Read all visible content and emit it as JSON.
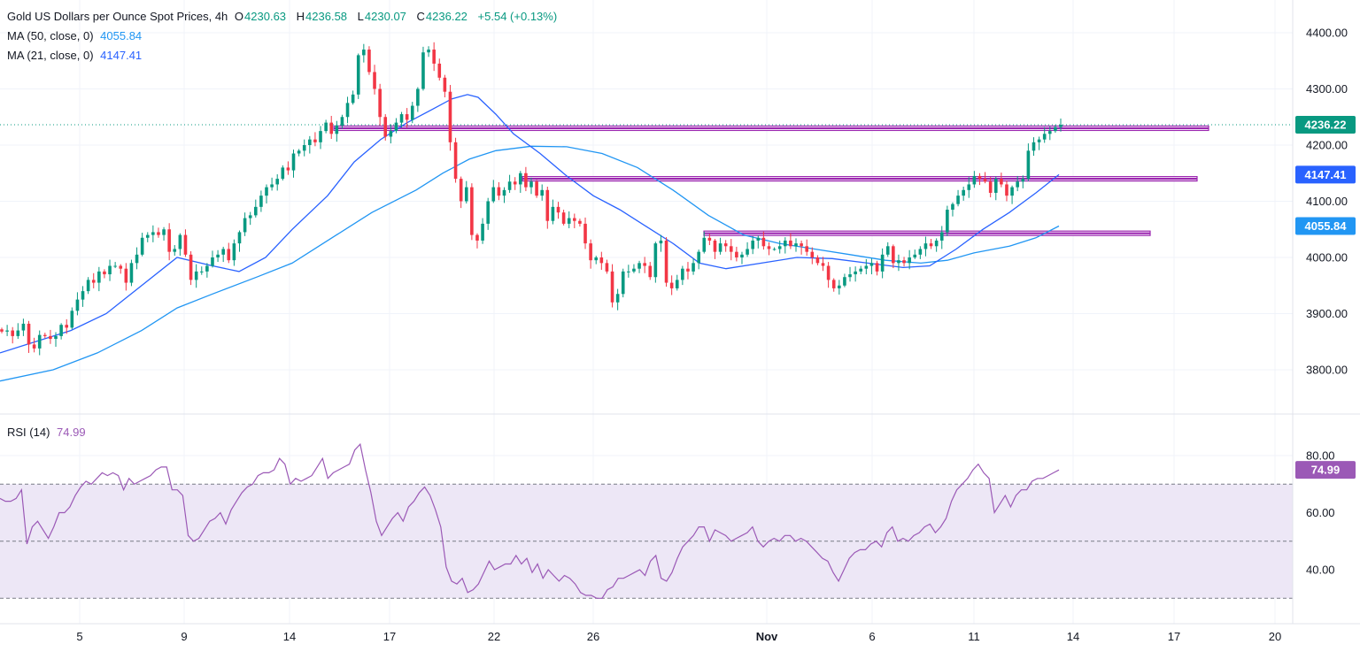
{
  "legend": {
    "title": "Gold US Dollars per Ounce Spot Prices, 4h",
    "o_label": "O",
    "o_value": "4230.63",
    "h_label": "H",
    "h_value": "4236.58",
    "l_label": "L",
    "l_value": "4230.07",
    "c_label": "C",
    "c_value": "4236.22",
    "change": "+5.54 (+0.13%)",
    "ma50_label": "MA (50, close, 0)",
    "ma50_value": "4055.84",
    "ma21_label": "MA (21, close, 0)",
    "ma21_value": "4147.41",
    "rsi_label": "RSI (14)",
    "rsi_value": "74.99"
  },
  "colors": {
    "up": "#089981",
    "down": "#f23645",
    "ma50": "#2196f3",
    "ma21": "#2962ff",
    "resistance": "#9c27b0",
    "rsi": "#9b59b6",
    "rsi_band": "#ede7f6",
    "grid": "#f0f3fa"
  },
  "chart_data": [
    {
      "type": "candlestick",
      "title": "Gold US Dollars per Ounce Spot Prices, 4h",
      "ylim": [
        3740,
        4440
      ],
      "y_ticks": [
        "4400.00",
        "4300.00",
        "4200.00",
        "4100.00",
        "4000.00",
        "3900.00",
        "3800.00"
      ],
      "x_ticks": [
        "5",
        "9",
        "14",
        "17",
        "22",
        "26",
        "Nov",
        "6",
        "11",
        "14",
        "17",
        "20"
      ],
      "price_labels": [
        {
          "text": "4236.22",
          "value": 4236.22,
          "color": "#089981"
        },
        {
          "text": "4147.41",
          "value": 4147.41,
          "color": "#2962ff"
        },
        {
          "text": "4055.84",
          "value": 4055.84,
          "color": "#2196f3"
        }
      ],
      "closes": [
        3868,
        3870,
        3860,
        3870,
        3882,
        3845,
        3838,
        3862,
        3860,
        3855,
        3860,
        3880,
        3875,
        3905,
        3925,
        3940,
        3960,
        3955,
        3975,
        3970,
        3985,
        3985,
        3980,
        3955,
        3990,
        4005,
        4035,
        4040,
        4045,
        4040,
        4050,
        4010,
        4015,
        4040,
        4005,
        3960,
        3975,
        3975,
        3985,
        4000,
        4005,
        4015,
        3995,
        4025,
        4045,
        4070,
        4075,
        4090,
        4110,
        4125,
        4130,
        4140,
        4160,
        4155,
        4185,
        4190,
        4200,
        4210,
        4205,
        4225,
        4240,
        4220,
        4235,
        4250,
        4275,
        4290,
        4360,
        4370,
        4330,
        4300,
        4250,
        4215,
        4225,
        4240,
        4255,
        4245,
        4270,
        4300,
        4365,
        4370,
        4345,
        4320,
        4295,
        4205,
        4140,
        4100,
        4125,
        4040,
        4030,
        4060,
        4100,
        4125,
        4110,
        4120,
        4135,
        4130,
        4150,
        4125,
        4135,
        4110,
        4120,
        4065,
        4090,
        4080,
        4060,
        4070,
        4065,
        4060,
        4025,
        3995,
        4000,
        3990,
        3975,
        3920,
        3935,
        3975,
        3975,
        3980,
        3990,
        3985,
        3965,
        4025,
        4030,
        3955,
        3945,
        3960,
        3980,
        3975,
        3990,
        4010,
        4035,
        4030,
        4010,
        4025,
        4020,
        4010,
        4000,
        4005,
        4015,
        4030,
        4035,
        4020,
        4015,
        4015,
        4020,
        4030,
        4020,
        4025,
        4020,
        4010,
        4000,
        3990,
        3985,
        3960,
        3945,
        3950,
        3965,
        3970,
        3975,
        3980,
        3985,
        3990,
        3975,
        4005,
        4020,
        3990,
        3995,
        3990,
        4000,
        4005,
        4015,
        4025,
        4020,
        4030,
        4045,
        4085,
        4095,
        4110,
        4120,
        4130,
        4145,
        4140,
        4135,
        4115,
        4140,
        4130,
        4110,
        4125,
        4135,
        4140,
        4190,
        4205,
        4210,
        4220,
        4225,
        4232,
        4236.22
      ],
      "ma50": [
        [
          0,
          3780
        ],
        [
          60,
          3800
        ],
        [
          110,
          3830
        ],
        [
          160,
          3870
        ],
        [
          200,
          3910
        ],
        [
          240,
          3935
        ],
        [
          290,
          3965
        ],
        [
          330,
          3990
        ],
        [
          380,
          4040
        ],
        [
          420,
          4080
        ],
        [
          470,
          4120
        ],
        [
          500,
          4150
        ],
        [
          530,
          4175
        ],
        [
          560,
          4190
        ],
        [
          600,
          4198
        ],
        [
          640,
          4197
        ],
        [
          680,
          4185
        ],
        [
          720,
          4160
        ],
        [
          760,
          4120
        ],
        [
          800,
          4075
        ],
        [
          840,
          4040
        ],
        [
          880,
          4025
        ],
        [
          920,
          4015
        ],
        [
          960,
          4005
        ],
        [
          1000,
          3995
        ],
        [
          1040,
          3990
        ],
        [
          1070,
          3995
        ],
        [
          1100,
          4008
        ],
        [
          1140,
          4020
        ],
        [
          1170,
          4035
        ],
        [
          1196,
          4055.84
        ]
      ],
      "ma21": [
        [
          0,
          3830
        ],
        [
          40,
          3850
        ],
        [
          80,
          3870
        ],
        [
          120,
          3900
        ],
        [
          160,
          3950
        ],
        [
          200,
          4000
        ],
        [
          240,
          3985
        ],
        [
          270,
          3975
        ],
        [
          300,
          4000
        ],
        [
          330,
          4050
        ],
        [
          370,
          4110
        ],
        [
          400,
          4170
        ],
        [
          430,
          4210
        ],
        [
          460,
          4240
        ],
        [
          490,
          4265
        ],
        [
          510,
          4282
        ],
        [
          528,
          4290
        ],
        [
          540,
          4285
        ],
        [
          560,
          4255
        ],
        [
          580,
          4220
        ],
        [
          610,
          4185
        ],
        [
          640,
          4145
        ],
        [
          670,
          4110
        ],
        [
          700,
          4085
        ],
        [
          730,
          4055
        ],
        [
          760,
          4025
        ],
        [
          790,
          3990
        ],
        [
          820,
          3980
        ],
        [
          860,
          3990
        ],
        [
          900,
          4000
        ],
        [
          940,
          3998
        ],
        [
          980,
          3990
        ],
        [
          1020,
          3982
        ],
        [
          1050,
          3985
        ],
        [
          1080,
          4015
        ],
        [
          1110,
          4050
        ],
        [
          1140,
          4080
        ],
        [
          1170,
          4115
        ],
        [
          1196,
          4147.41
        ]
      ],
      "resistances": [
        {
          "value": 4230,
          "x0": 377,
          "x1": 1365
        },
        {
          "value": 4140,
          "x0": 590,
          "x1": 1352
        },
        {
          "value": 4043,
          "x0": 795,
          "x1": 1299
        }
      ],
      "last_price": 4236.22
    },
    {
      "type": "line",
      "title": "RSI (14)",
      "ylim": [
        28,
        88
      ],
      "y_ticks": [
        "80.00",
        "60.00",
        "40.00"
      ],
      "levels": [
        70,
        50,
        30
      ],
      "value_label": "74.99",
      "values": [
        65,
        64,
        64,
        65,
        68,
        49,
        55,
        57,
        54,
        51,
        55,
        60,
        60,
        62,
        66,
        69,
        71,
        70,
        72,
        74,
        73,
        74,
        73,
        68,
        72,
        70,
        71,
        72,
        73,
        75,
        76,
        76,
        68,
        68,
        66,
        52,
        50,
        51,
        54,
        57,
        58,
        60,
        56,
        61,
        64,
        67,
        69,
        70,
        73,
        74,
        74,
        75,
        79,
        77,
        70,
        72,
        71,
        72,
        73,
        76,
        79,
        72,
        74,
        75,
        76,
        77,
        82,
        84,
        75,
        67,
        57,
        52,
        55,
        58,
        60,
        57,
        62,
        64,
        67,
        69,
        66,
        61,
        55,
        41,
        36,
        35,
        37,
        32,
        33,
        35,
        39,
        43,
        40,
        41,
        42,
        42,
        45,
        42,
        44,
        39,
        42,
        37,
        40,
        38,
        36,
        38,
        37,
        35,
        32,
        31,
        31,
        30,
        30,
        33,
        34,
        37,
        37,
        38,
        39,
        40,
        38,
        43,
        45,
        37,
        36,
        39,
        44,
        48,
        50,
        52,
        55,
        55,
        50,
        54,
        53,
        52,
        50,
        51,
        52,
        53,
        55,
        50,
        48,
        50,
        51,
        50,
        52,
        52,
        50,
        51,
        50,
        48,
        46,
        44,
        43,
        39,
        36,
        40,
        44,
        46,
        47,
        47,
        49,
        50,
        48,
        53,
        55,
        50,
        51,
        50,
        52,
        53,
        55,
        56,
        53,
        55,
        58,
        64,
        68,
        70,
        72,
        75,
        77,
        74,
        72,
        60,
        63,
        66,
        62,
        66,
        68,
        68,
        71,
        72,
        72,
        73,
        74,
        74.99
      ]
    }
  ]
}
